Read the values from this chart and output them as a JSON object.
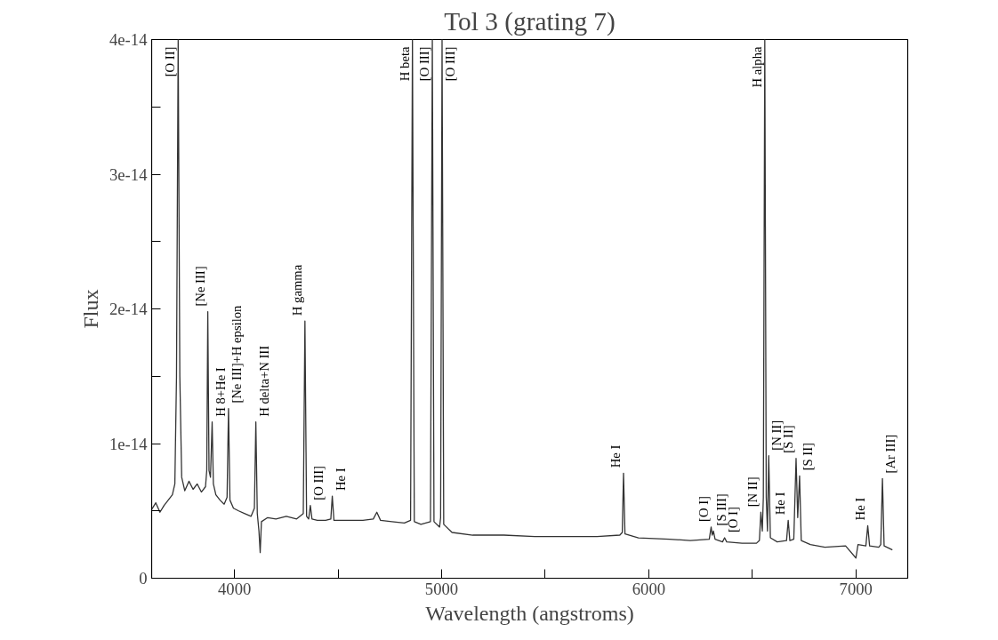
{
  "chart_data": {
    "type": "line",
    "title": "Tol 3 (grating 7)",
    "xlabel": "Wavelength (angstroms)",
    "ylabel": "Flux",
    "xlim": [
      3600,
      7250
    ],
    "ylim": [
      0,
      4e-14
    ],
    "xticks": [
      4000,
      {
        "value": 4500,
        "label": null
      },
      5000,
      {
        "value": 5500,
        "label": null
      },
      6000,
      {
        "value": 6500,
        "label": null
      },
      7000
    ],
    "yticks": [
      0,
      {
        "value": 5e-15,
        "label": null
      },
      {
        "value": 1e-14,
        "label": "1e-14"
      },
      {
        "value": 1.5e-14,
        "label": null
      },
      {
        "value": 2e-14,
        "label": "2e-14"
      },
      {
        "value": 2.5e-14,
        "label": null
      },
      {
        "value": 3e-14,
        "label": "3e-14"
      },
      {
        "value": 3.5e-14,
        "label": null
      },
      {
        "value": 4e-14,
        "label": "4e-14"
      }
    ],
    "grid": false,
    "marker": "none",
    "line_style": "solid",
    "series": [
      {
        "color": "#333333",
        "x": [
          3600,
          3620,
          3640,
          3660,
          3680,
          3700,
          3712,
          3720,
          3728,
          3736,
          3745,
          3760,
          3780,
          3800,
          3820,
          3840,
          3860,
          3866,
          3871,
          3877,
          3884,
          3892,
          3898,
          3910,
          3930,
          3950,
          3964,
          3971,
          3978,
          3995,
          4020,
          4050,
          4080,
          4096,
          4103,
          4110,
          4118,
          4124,
          4130,
          4160,
          4200,
          4250,
          4300,
          4332,
          4340,
          4348,
          4358,
          4366,
          4374,
          4400,
          4440,
          4465,
          4472,
          4480,
          4550,
          4620,
          4670,
          4687,
          4705,
          4760,
          4820,
          4850,
          4859,
          4868,
          4900,
          4946,
          4955,
          4963,
          4990,
          4995,
          5002,
          5010,
          5050,
          5150,
          5300,
          5450,
          5600,
          5750,
          5860,
          5872,
          5878,
          5885,
          5950,
          6100,
          6200,
          6292,
          6301,
          6306,
          6312,
          6320,
          6356,
          6366,
          6376,
          6450,
          6520,
          6534,
          6541,
          6548,
          6553,
          6560,
          6567,
          6573,
          6579,
          6587,
          6620,
          6665,
          6673,
          6681,
          6700,
          6711,
          6719,
          6728,
          6736,
          6780,
          6850,
          6950,
          7000,
          7010,
          7048,
          7057,
          7066,
          7110,
          7120,
          7128,
          7136,
          7176
        ],
        "values": [
          5.1e-15,
          5.6e-15,
          4.9e-15,
          5.4e-15,
          5.8e-15,
          6.2e-15,
          7e-15,
          1.5e-14,
          4e-14,
          1.5e-14,
          7.5e-15,
          6.5e-15,
          7.2e-15,
          6.6e-15,
          7e-15,
          6.4e-15,
          6.8e-15,
          8e-15,
          1.98e-14,
          8e-15,
          7.5e-15,
          1.16e-14,
          7e-15,
          6.2e-15,
          5.8e-15,
          5.5e-15,
          6e-15,
          1.26e-14,
          5.8e-15,
          5.2e-15,
          5e-15,
          4.8e-15,
          4.6e-15,
          5.2e-15,
          1.16e-14,
          4.8e-15,
          3.5e-15,
          1.9e-15,
          4.2e-15,
          4.5e-15,
          4.4e-15,
          4.6e-15,
          4.4e-15,
          4.8e-15,
          1.91e-14,
          4.6e-15,
          4.4e-15,
          5.4e-15,
          4.4e-15,
          4.3e-15,
          4.3e-15,
          4.4e-15,
          6.1e-15,
          4.3e-15,
          4.3e-15,
          4.3e-15,
          4.4e-15,
          4.9e-15,
          4.3e-15,
          4.2e-15,
          4.1e-15,
          4.3e-15,
          4e-14,
          4.2e-15,
          4e-15,
          4.2e-15,
          4e-14,
          4.2e-15,
          3.8e-15,
          4.5e-15,
          4e-14,
          4e-15,
          3.4e-15,
          3.2e-15,
          3.2e-15,
          3.1e-15,
          3.1e-15,
          3.1e-15,
          3.2e-15,
          3.4e-15,
          7.8e-15,
          3.3e-15,
          3e-15,
          2.9e-15,
          2.8e-15,
          2.9e-15,
          3.8e-15,
          3.2e-15,
          3.5e-15,
          2.9e-15,
          2.7e-15,
          3e-15,
          2.7e-15,
          2.6e-15,
          2.6e-15,
          2.8e-15,
          4.9e-15,
          3.5e-15,
          6e-15,
          4e-14,
          6e-15,
          3.5e-15,
          9.1e-15,
          3e-15,
          2.7e-15,
          2.8e-15,
          4.3e-15,
          2.8e-15,
          2.9e-15,
          8.9e-15,
          4.5e-15,
          7.6e-15,
          2.8e-15,
          2.5e-15,
          2.3e-15,
          2.4e-15,
          1.5e-15,
          2.5e-15,
          2.4e-15,
          3.9e-15,
          2.4e-15,
          2.3e-15,
          2.5e-15,
          7.4e-15,
          2.4e-15,
          2.1e-15
        ]
      }
    ],
    "annotations": [
      {
        "text": "[O II]",
        "x": 3728,
        "y": 4e-14
      },
      {
        "text": "[Ne III]",
        "x": 3871,
        "y": 1.98e-14
      },
      {
        "text": "H 8+He I",
        "x": 3892,
        "y": 1.16e-14
      },
      {
        "text": "[Ne III]+H epsilon",
        "x": 3971,
        "y": 1.26e-14
      },
      {
        "text": "H delta+N III",
        "x": 4103,
        "y": 1.16e-14
      },
      {
        "text": "H gamma",
        "x": 4340,
        "y": 1.91e-14
      },
      {
        "text": "[O III]",
        "x": 4366,
        "y": 5.4e-15
      },
      {
        "text": "He I",
        "x": 4472,
        "y": 6.1e-15
      },
      {
        "text": "H beta",
        "x": 4859,
        "y": 4e-14
      },
      {
        "text": "[O III]",
        "x": 4955,
        "y": 4e-14
      },
      {
        "text": "[O III]",
        "x": 5002,
        "y": 4e-14
      },
      {
        "text": "He I",
        "x": 5878,
        "y": 7.8e-15
      },
      {
        "text": "[O I]",
        "x": 6301,
        "y": 3.8e-15
      },
      {
        "text": "[S III]",
        "x": 6312,
        "y": 3.5e-15
      },
      {
        "text": "[O I]",
        "x": 6366,
        "y": 3e-15
      },
      {
        "text": "[N II]",
        "x": 6541,
        "y": 4.9e-15
      },
      {
        "text": "H alpha",
        "x": 6560,
        "y": 4e-14
      },
      {
        "text": "[N II]",
        "x": 6579,
        "y": 9.1e-15
      },
      {
        "text": "He I",
        "x": 6673,
        "y": 4.3e-15
      },
      {
        "text": "[S II]",
        "x": 6711,
        "y": 8.9e-15
      },
      {
        "text": "[S II]",
        "x": 6728,
        "y": 7.6e-15
      },
      {
        "text": "He I",
        "x": 7057,
        "y": 3.9e-15
      },
      {
        "text": "[Ar III]",
        "x": 7128,
        "y": 7.4e-15
      }
    ]
  }
}
